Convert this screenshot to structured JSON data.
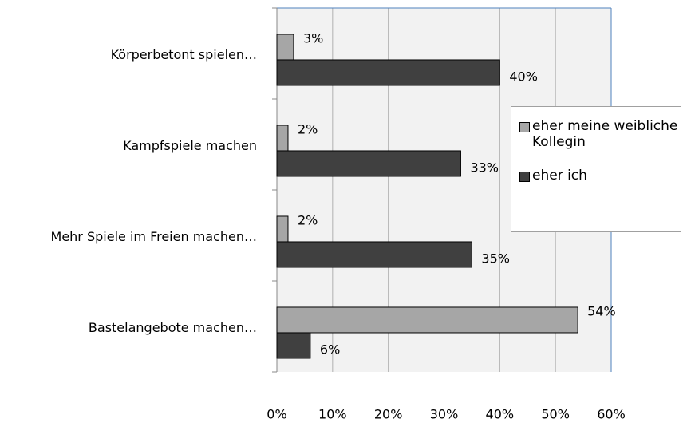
{
  "chart_data": {
    "type": "bar",
    "orientation": "horizontal",
    "categories": [
      "Körperbetont spielen…",
      "Kampfspiele machen",
      "Mehr Spiele im Freien machen…",
      "Bastelangebote machen…"
    ],
    "series": [
      {
        "name": "eher meine weibliche Kollegin",
        "color": "#a6a6a6",
        "values": [
          3,
          2,
          2,
          54
        ],
        "value_labels": [
          "3%",
          "2%",
          "2%",
          "54%"
        ]
      },
      {
        "name": "eher ich",
        "color": "#404040",
        "values": [
          40,
          33,
          35,
          6
        ],
        "value_labels": [
          "40%",
          "33%",
          "35%",
          "6%"
        ]
      }
    ],
    "xlim": [
      0,
      60
    ],
    "xticks": [
      {
        "value": 0,
        "label": "0%"
      },
      {
        "value": 10,
        "label": "10%"
      },
      {
        "value": 20,
        "label": "20%"
      },
      {
        "value": 30,
        "label": "30%"
      },
      {
        "value": 40,
        "label": "40%"
      },
      {
        "value": 50,
        "label": "50%"
      },
      {
        "value": 60,
        "label": "60%"
      }
    ],
    "grid": true,
    "legend": "right"
  }
}
